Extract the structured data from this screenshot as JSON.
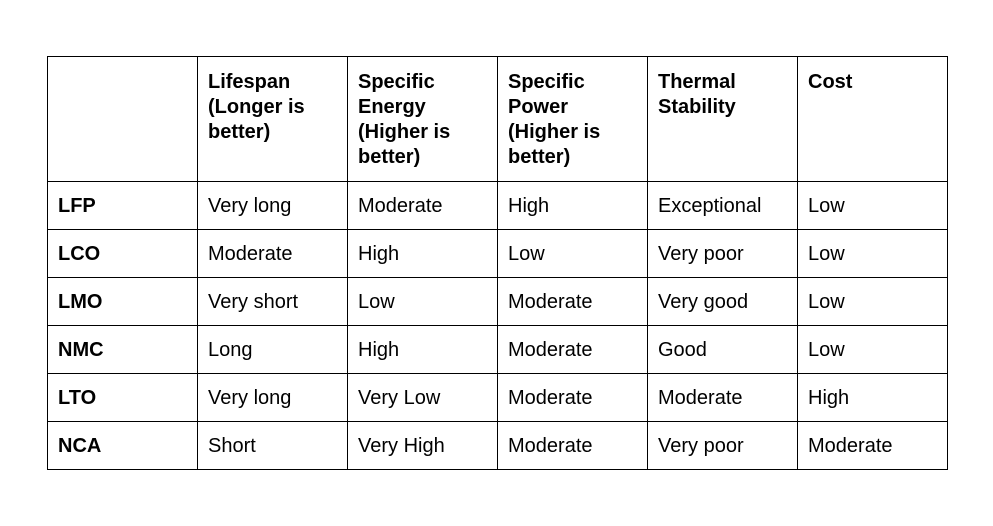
{
  "table": {
    "headers": [
      "",
      "Lifespan (Longer is better)",
      "Specific Energy (Higher is better)",
      "Specific Power (Higher is better)",
      "Thermal Stability",
      "Cost"
    ],
    "rows": [
      [
        "LFP",
        "Very long",
        "Moderate",
        "High",
        "Exceptional",
        "Low"
      ],
      [
        "LCO",
        "Moderate",
        "High",
        "Low",
        "Very poor",
        "Low"
      ],
      [
        "LMO",
        "Very short",
        "Low",
        "Moderate",
        "Very good",
        "Low"
      ],
      [
        "NMC",
        "Long",
        "High",
        "Moderate",
        "Good",
        "Low"
      ],
      [
        "LTO",
        "Very long",
        "Very Low",
        "Moderate",
        "Moderate",
        "High"
      ],
      [
        "NCA",
        "Short",
        "Very High",
        "Moderate",
        "Very poor",
        "Moderate"
      ]
    ]
  }
}
